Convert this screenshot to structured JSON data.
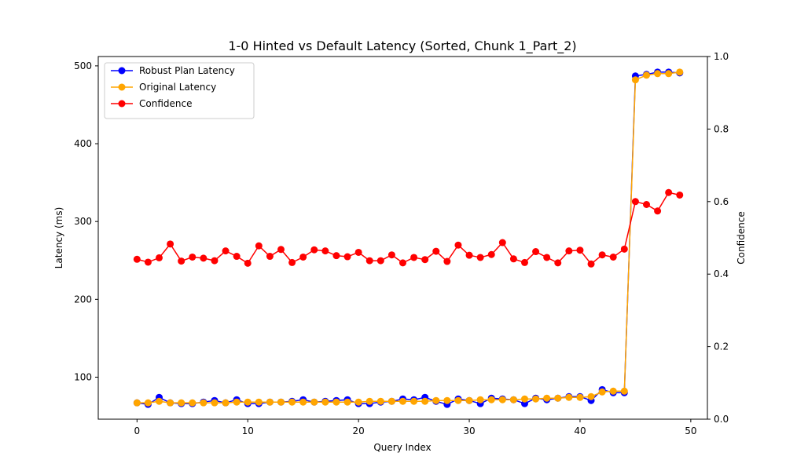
{
  "chart_data": {
    "type": "line",
    "title": "1-0 Hinted vs Default Latency (Sorted, Chunk 1_Part_2)",
    "xlabel": "Query Index",
    "ylabel": "Latency (ms)",
    "y2label": "Confidence",
    "xlim": [
      -3.5,
      51.5
    ],
    "ylim": [
      46,
      512
    ],
    "y2lim": [
      0.0,
      1.0
    ],
    "xticks": [
      0,
      10,
      20,
      30,
      40,
      50
    ],
    "yticks": [
      100,
      200,
      300,
      400,
      500
    ],
    "y2ticks": [
      0.0,
      0.2,
      0.4,
      0.6,
      0.8,
      1.0
    ],
    "y2tick_labels": [
      "0.0",
      "0.2",
      "0.4",
      "0.6",
      "0.8",
      "1.0"
    ],
    "legend_position": "top-left",
    "grid": false,
    "x": [
      0,
      1,
      2,
      3,
      4,
      5,
      6,
      7,
      8,
      9,
      10,
      11,
      12,
      13,
      14,
      15,
      16,
      17,
      18,
      19,
      20,
      21,
      22,
      23,
      24,
      25,
      26,
      27,
      28,
      29,
      30,
      31,
      32,
      33,
      34,
      35,
      36,
      37,
      38,
      39,
      40,
      41,
      42,
      43,
      44,
      45,
      46,
      47,
      48,
      49
    ],
    "series": [
      {
        "name": "Robust Plan Latency",
        "axis": "left",
        "color": "#0000ff",
        "values": [
          67,
          65,
          74,
          67,
          66,
          66,
          68,
          70,
          67,
          71,
          66,
          66,
          68,
          68,
          69,
          71,
          68,
          69,
          70,
          71,
          66,
          66,
          68,
          69,
          72,
          71,
          74,
          69,
          65,
          72,
          70,
          66,
          73,
          72,
          71,
          66,
          73,
          71,
          73,
          75,
          75,
          70,
          84,
          80,
          80,
          487,
          489,
          492,
          492,
          491
        ]
      },
      {
        "name": "Original Latency",
        "axis": "left",
        "color": "#ffa500",
        "values": [
          67,
          67,
          69,
          67,
          67,
          67,
          67,
          67,
          67,
          68,
          68,
          68,
          68,
          68,
          68,
          68,
          68,
          68,
          68,
          68,
          68,
          69,
          69,
          69,
          69,
          69,
          69,
          70,
          70,
          70,
          70,
          71,
          71,
          71,
          71,
          72,
          72,
          73,
          73,
          74,
          74,
          75,
          81,
          82,
          82,
          482,
          488,
          490,
          490,
          492
        ]
      },
      {
        "name": "Confidence",
        "axis": "right",
        "color": "#ff0000",
        "values": [
          0.441,
          0.433,
          0.445,
          0.483,
          0.436,
          0.447,
          0.444,
          0.437,
          0.464,
          0.449,
          0.43,
          0.478,
          0.449,
          0.468,
          0.432,
          0.447,
          0.467,
          0.464,
          0.451,
          0.448,
          0.46,
          0.437,
          0.437,
          0.453,
          0.431,
          0.446,
          0.44,
          0.463,
          0.435,
          0.48,
          0.452,
          0.446,
          0.454,
          0.487,
          0.442,
          0.432,
          0.462,
          0.446,
          0.431,
          0.464,
          0.466,
          0.428,
          0.453,
          0.447,
          0.469,
          0.6,
          0.592,
          0.574,
          0.625,
          0.618
        ]
      }
    ]
  }
}
